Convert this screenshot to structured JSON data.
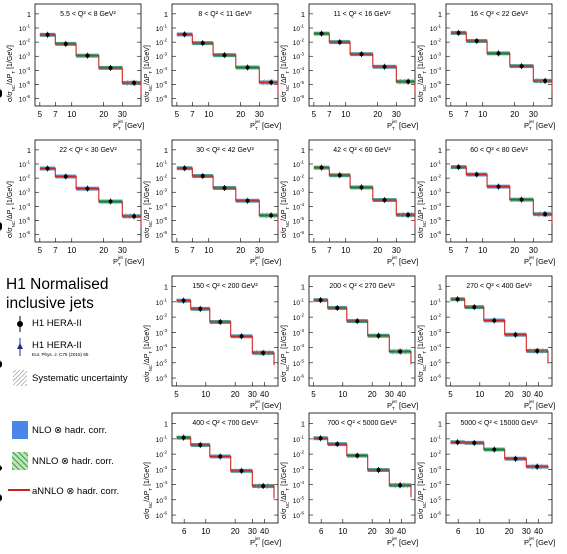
{
  "legend": {
    "title_line1": "H1 Normalised",
    "title_line2": "inclusive jets",
    "data_label": "H1 HERA-II",
    "prev_label": "H1 HERA-II",
    "prev_ref": "Eur. Phys. J. C75 (2015) 65",
    "syst_label": "Systematic uncertainty",
    "nlo_label": "NLO ⊗ hadr. corr.",
    "nnlo_label": "NNLO ⊗ hadr. corr.",
    "annlo_label": "aNNLO ⊗ hadr. corr."
  },
  "colors": {
    "nlo": "#4a86e8",
    "nnlo": "#2e9e2e",
    "annlo": "#cc2222",
    "data": "#000000",
    "prev": "#1f2a8a"
  },
  "axis_text": {
    "ylabel_main": "σ/σ",
    "ylabel_sub": "NC",
    "ylabel_rest": "/ΔP",
    "ylabel_T": "T",
    "ylabel_unit": " [1/GeV]",
    "xlabel_main": "P",
    "xlabel_sup": "jet",
    "xlabel_sub": "T",
    "xlabel_unit": " [GeV]"
  },
  "chart_data": [
    {
      "type": "line",
      "title": "5.5 < Q² < 8 GeV²",
      "x_scale": "log",
      "y_scale": "log",
      "xlim": [
        4.5,
        45
      ],
      "ylim": [
        3e-07,
        5
      ],
      "bins": [
        5,
        7,
        11,
        18,
        30,
        50
      ],
      "values": [
        0.033,
        0.0075,
        0.0011,
        0.00015,
        1.3e-05,
        1.8e-06
      ],
      "x_ticks": [
        "5",
        "7",
        "10",
        "20",
        "30"
      ],
      "y_ticks": [
        "1",
        "10⁻¹",
        "10⁻²",
        "10⁻³",
        "10⁻⁴",
        "10⁻⁵",
        "10⁻⁶"
      ]
    },
    {
      "type": "line",
      "title": "8 < Q² < 11 GeV²",
      "x_scale": "log",
      "y_scale": "log",
      "xlim": [
        4.5,
        45
      ],
      "ylim": [
        3e-07,
        5
      ],
      "bins": [
        5,
        7,
        11,
        18,
        30,
        50
      ],
      "values": [
        0.035,
        0.0085,
        0.0012,
        0.00016,
        1.4e-05,
        2.2e-06
      ],
      "x_ticks": [
        "5",
        "7",
        "10",
        "20",
        "30"
      ],
      "y_ticks": [
        "1",
        "10⁻¹",
        "10⁻²",
        "10⁻³",
        "10⁻⁴",
        "10⁻⁵",
        "10⁻⁶"
      ]
    },
    {
      "type": "line",
      "title": "11 < Q² < 16 GeV²",
      "x_scale": "log",
      "y_scale": "log",
      "xlim": [
        4.5,
        45
      ],
      "ylim": [
        3e-07,
        5
      ],
      "bins": [
        5,
        7,
        11,
        18,
        30,
        50
      ],
      "values": [
        0.04,
        0.01,
        0.0014,
        0.00018,
        1.6e-05,
        2.5e-06
      ],
      "x_ticks": [
        "5",
        "7",
        "10",
        "20",
        "30"
      ],
      "y_ticks": [
        "1",
        "10⁻¹",
        "10⁻²",
        "10⁻³",
        "10⁻⁴",
        "10⁻⁵",
        "10⁻⁶"
      ]
    },
    {
      "type": "line",
      "title": "16 < Q² < 22 GeV²",
      "x_scale": "log",
      "y_scale": "log",
      "xlim": [
        4.5,
        45
      ],
      "ylim": [
        3e-07,
        5
      ],
      "bins": [
        5,
        7,
        11,
        18,
        30,
        50
      ],
      "values": [
        0.045,
        0.012,
        0.0016,
        0.0002,
        1.8e-05,
        3e-06
      ],
      "x_ticks": [
        "5",
        "7",
        "10",
        "20",
        "30"
      ],
      "y_ticks": [
        "1",
        "10⁻¹",
        "10⁻²",
        "10⁻³",
        "10⁻⁴",
        "10⁻⁵",
        "10⁻⁶"
      ]
    },
    {
      "type": "line",
      "title": "22 < Q² < 30 GeV²",
      "x_scale": "log",
      "y_scale": "log",
      "xlim": [
        4.5,
        45
      ],
      "ylim": [
        3e-07,
        5
      ],
      "bins": [
        5,
        7,
        11,
        18,
        30,
        50
      ],
      "values": [
        0.048,
        0.013,
        0.0018,
        0.00022,
        2e-05,
        3e-06
      ],
      "x_ticks": [
        "5",
        "7",
        "10",
        "20",
        "30"
      ],
      "y_ticks": [
        "1",
        "10⁻¹",
        "10⁻²",
        "10⁻³",
        "10⁻⁴",
        "10⁻⁵",
        "10⁻⁶"
      ]
    },
    {
      "type": "line",
      "title": "30 < Q² < 42 GeV²",
      "x_scale": "log",
      "y_scale": "log",
      "xlim": [
        4.5,
        45
      ],
      "ylim": [
        3e-07,
        5
      ],
      "bins": [
        5,
        7,
        11,
        18,
        30,
        50
      ],
      "values": [
        0.05,
        0.014,
        0.002,
        0.00025,
        2.3e-05,
        3.5e-06
      ],
      "x_ticks": [
        "5",
        "7",
        "10",
        "20",
        "30"
      ],
      "y_ticks": [
        "1",
        "10⁻¹",
        "10⁻²",
        "10⁻³",
        "10⁻⁴",
        "10⁻⁵",
        "10⁻⁶"
      ]
    },
    {
      "type": "line",
      "title": "42 < Q² < 60 GeV²",
      "x_scale": "log",
      "y_scale": "log",
      "xlim": [
        4.5,
        45
      ],
      "ylim": [
        3e-07,
        5
      ],
      "bins": [
        5,
        7,
        11,
        18,
        30,
        50
      ],
      "values": [
        0.055,
        0.016,
        0.0022,
        0.00028,
        2.5e-05,
        4e-06
      ],
      "x_ticks": [
        "5",
        "7",
        "10",
        "20",
        "30"
      ],
      "y_ticks": [
        "1",
        "10⁻¹",
        "10⁻²",
        "10⁻³",
        "10⁻⁴",
        "10⁻⁵",
        "10⁻⁶"
      ]
    },
    {
      "type": "line",
      "title": "60 < Q² < 80 GeV²",
      "x_scale": "log",
      "y_scale": "log",
      "xlim": [
        4.5,
        45
      ],
      "ylim": [
        3e-07,
        5
      ],
      "bins": [
        5,
        7,
        11,
        18,
        30,
        50
      ],
      "values": [
        0.06,
        0.018,
        0.0025,
        0.0003,
        2.8e-05,
        5e-06
      ],
      "x_ticks": [
        "5",
        "7",
        "10",
        "20",
        "30"
      ],
      "y_ticks": [
        "1",
        "10⁻¹",
        "10⁻²",
        "10⁻³",
        "10⁻⁴",
        "10⁻⁵",
        "10⁻⁶"
      ]
    },
    {
      "type": "line",
      "title": "150 < Q² < 200 GeV²",
      "x_scale": "log",
      "y_scale": "log",
      "xlim": [
        4.5,
        55
      ],
      "ylim": [
        3e-07,
        5
      ],
      "bins": [
        5,
        7,
        11,
        18,
        30,
        50
      ],
      "values": [
        0.12,
        0.035,
        0.0048,
        0.00055,
        4.5e-05,
        7e-06
      ],
      "x_ticks": [
        "5",
        "10",
        "20",
        "30",
        "40"
      ],
      "y_ticks": [
        "1",
        "10⁻¹",
        "10⁻²",
        "10⁻³",
        "10⁻⁴",
        "10⁻⁵",
        "10⁻⁶",
        "10⁻⁷"
      ]
    },
    {
      "type": "line",
      "title": "200 < Q² < 270 GeV²",
      "x_scale": "log",
      "y_scale": "log",
      "xlim": [
        4.5,
        55
      ],
      "ylim": [
        3e-07,
        5
      ],
      "bins": [
        5,
        7,
        11,
        18,
        30,
        50
      ],
      "values": [
        0.13,
        0.04,
        0.0055,
        0.0006,
        5.5e-05,
        8e-06
      ],
      "x_ticks": [
        "5",
        "10",
        "20",
        "30",
        "40"
      ],
      "y_ticks": [
        "1",
        "10⁻¹",
        "10⁻²",
        "10⁻³",
        "10⁻⁴",
        "10⁻⁵",
        "10⁻⁶",
        "10⁻⁷"
      ]
    },
    {
      "type": "line",
      "title": "270 < Q² < 400 GeV²",
      "x_scale": "log",
      "y_scale": "log",
      "xlim": [
        4.5,
        55
      ],
      "ylim": [
        3e-07,
        5
      ],
      "bins": [
        5,
        7,
        11,
        18,
        30,
        50
      ],
      "values": [
        0.15,
        0.045,
        0.006,
        0.0007,
        6e-05,
        9e-06
      ],
      "x_ticks": [
        "5",
        "10",
        "20",
        "30",
        "40"
      ],
      "y_ticks": [
        "1",
        "10⁻¹",
        "10⁻²",
        "10⁻³",
        "10⁻⁴",
        "10⁻⁵",
        "10⁻⁶",
        "10⁻⁷"
      ]
    },
    {
      "type": "line",
      "title": "400 < Q² < 700 GeV²",
      "x_scale": "log",
      "y_scale": "log",
      "xlim": [
        4.5,
        55
      ],
      "ylim": [
        3e-07,
        5
      ],
      "bins": [
        5,
        7,
        11,
        18,
        30,
        50
      ],
      "values": [
        0.12,
        0.04,
        0.007,
        0.0008,
        8e-05,
        1.2e-05
      ],
      "x_ticks": [
        "6",
        "10",
        "20",
        "30",
        "40"
      ],
      "y_ticks": [
        "1",
        "10⁻¹",
        "10⁻²",
        "10⁻³",
        "10⁻⁴",
        "10⁻⁵",
        "10⁻⁶",
        "10⁻⁷"
      ]
    },
    {
      "type": "line",
      "title": "700 < Q² < 5000 GeV²",
      "x_scale": "log",
      "y_scale": "log",
      "xlim": [
        4.5,
        55
      ],
      "ylim": [
        3e-07,
        5
      ],
      "bins": [
        5,
        7,
        11,
        18,
        30,
        50
      ],
      "values": [
        0.11,
        0.045,
        0.008,
        0.0009,
        9e-05,
        1.5e-05
      ],
      "x_ticks": [
        "6",
        "10",
        "20",
        "30",
        "40"
      ],
      "y_ticks": [
        "1",
        "10⁻¹",
        "10⁻²",
        "10⁻³",
        "10⁻⁴",
        "10⁻⁵",
        "10⁻⁶",
        "10⁻⁷"
      ]
    },
    {
      "type": "line",
      "title": "5000 < Q² < 15000 GeV²",
      "x_scale": "log",
      "y_scale": "log",
      "xlim": [
        4.5,
        55
      ],
      "ylim": [
        3e-07,
        5
      ],
      "bins": [
        5,
        7,
        11,
        18,
        30,
        50
      ],
      "values": [
        0.06,
        0.055,
        0.02,
        0.005,
        0.0015,
        0.0012
      ],
      "x_ticks": [
        "6",
        "10",
        "20",
        "30",
        "40"
      ],
      "y_ticks": [
        "1",
        "10⁻¹",
        "10⁻²",
        "10⁻³",
        "10⁻⁴",
        "10⁻⁵",
        "10⁻⁶",
        "10⁻⁷"
      ]
    }
  ]
}
